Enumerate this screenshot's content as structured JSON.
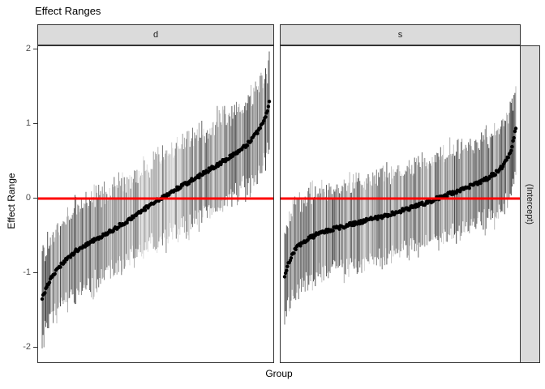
{
  "chart_data": {
    "type": "scatter",
    "title": "Effect Ranges",
    "xlabel": "Group",
    "ylabel": "Effect Range",
    "right_strip_label": "(Intercept)",
    "facet_row_label": "(Intercept)",
    "y_ticks": [
      "2",
      "1",
      "0",
      "-1",
      "-2"
    ],
    "y_tick_values": [
      2,
      1,
      0,
      -1,
      -2
    ],
    "ylim": [
      -2.2,
      2.05
    ],
    "x_axis_note": "groups sorted by effect estimate; no x tick labels shown",
    "grid": "off",
    "legend": "none",
    "reference_line": {
      "y": 0,
      "color": "#ff0000"
    },
    "point_color": "#000000",
    "interval_bar_shade_range": [
      "#282828",
      "#c8c8c8"
    ],
    "facets": [
      {
        "label": "d",
        "n_groups": 250,
        "interval_half_width_range": [
          0.42,
          0.7
        ],
        "sorted_estimates_knots": [
          [
            0.0,
            -1.33
          ],
          [
            0.01,
            -1.26
          ],
          [
            0.03,
            -1.12
          ],
          [
            0.06,
            -0.97
          ],
          [
            0.1,
            -0.83
          ],
          [
            0.15,
            -0.7
          ],
          [
            0.22,
            -0.57
          ],
          [
            0.3,
            -0.44
          ],
          [
            0.38,
            -0.29
          ],
          [
            0.46,
            -0.12
          ],
          [
            0.52,
            0.0
          ],
          [
            0.6,
            0.14
          ],
          [
            0.68,
            0.28
          ],
          [
            0.76,
            0.43
          ],
          [
            0.84,
            0.58
          ],
          [
            0.9,
            0.72
          ],
          [
            0.94,
            0.86
          ],
          [
            0.97,
            1.0
          ],
          [
            0.99,
            1.14
          ],
          [
            1.0,
            1.28
          ]
        ]
      },
      {
        "label": "s",
        "n_groups": 250,
        "interval_half_width_range": [
          0.45,
          0.65
        ],
        "sorted_estimates_knots": [
          [
            0.0,
            -1.03
          ],
          [
            0.01,
            -0.93
          ],
          [
            0.02,
            -0.84
          ],
          [
            0.04,
            -0.71
          ],
          [
            0.06,
            -0.63
          ],
          [
            0.09,
            -0.56
          ],
          [
            0.14,
            -0.48
          ],
          [
            0.22,
            -0.4
          ],
          [
            0.32,
            -0.32
          ],
          [
            0.42,
            -0.24
          ],
          [
            0.52,
            -0.15
          ],
          [
            0.62,
            -0.05
          ],
          [
            0.66,
            0.0
          ],
          [
            0.72,
            0.07
          ],
          [
            0.8,
            0.16
          ],
          [
            0.87,
            0.26
          ],
          [
            0.92,
            0.36
          ],
          [
            0.95,
            0.46
          ],
          [
            0.97,
            0.57
          ],
          [
            0.985,
            0.7
          ],
          [
            1.0,
            0.96
          ]
        ]
      }
    ]
  }
}
